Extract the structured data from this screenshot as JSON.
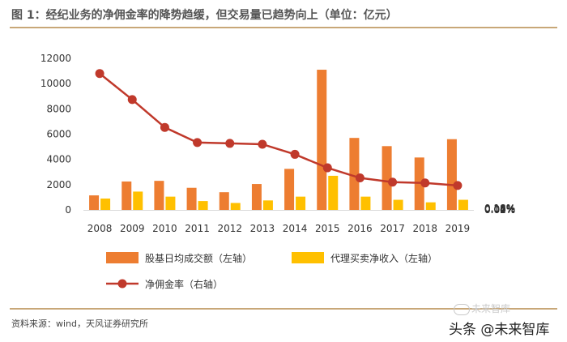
{
  "figure": {
    "title": "图 1：经纪业务的净佣金率的降势趋缓，但交易量已趋势向上（单位：亿元）",
    "source": "资料来源：wind，天风证券研究所",
    "watermark_logo": "未来智库",
    "watermark": "头条 @未来智库"
  },
  "colors": {
    "bar_turnover": "#ED7D31",
    "bar_commission": "#FFC000",
    "line_rate": "#C0392B",
    "rule": "#C8A778"
  },
  "chart_data": {
    "type": "bar",
    "categories": [
      "2008",
      "2009",
      "2010",
      "2011",
      "2012",
      "2013",
      "2014",
      "2015",
      "2016",
      "2017",
      "2018",
      "2019"
    ],
    "series": [
      {
        "name": "股基日均成交额（左轴）",
        "kind": "bar",
        "axis": "left",
        "values": [
          1150,
          2250,
          2300,
          1750,
          1400,
          2050,
          3250,
          11100,
          5700,
          5050,
          4150,
          5600
        ]
      },
      {
        "name": "代理买卖净收入（左轴）",
        "kind": "bar",
        "axis": "left",
        "values": [
          900,
          1450,
          1050,
          700,
          550,
          750,
          1050,
          2700,
          1050,
          800,
          600,
          800
        ]
      },
      {
        "name": "净佣金率（右轴）",
        "kind": "line",
        "axis": "right",
        "values": [
          0.162,
          0.131,
          0.098,
          0.08,
          0.079,
          0.078,
          0.066,
          0.05,
          0.038,
          0.033,
          0.032,
          0.029
        ]
      }
    ],
    "left_axis": {
      "ylim": [
        0,
        12000
      ],
      "ticks": [
        "0",
        "2000",
        "4000",
        "6000",
        "8000",
        "10000",
        "12000"
      ]
    },
    "right_axis": {
      "ylim": [
        0,
        0.18
      ],
      "ticks": [
        "0.00%",
        "0.02%",
        "0.04%",
        "0.06%",
        "0.08%",
        "0.10%",
        "0.12%",
        "0.14%",
        "0.16%",
        "0.18%"
      ]
    },
    "grid": false,
    "legend_position": "bottom"
  }
}
